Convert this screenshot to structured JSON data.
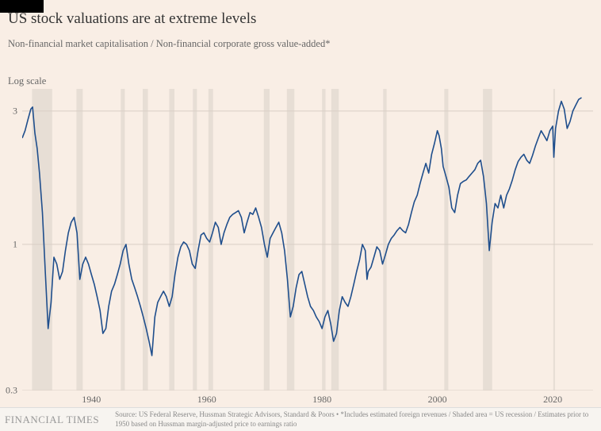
{
  "title": "US stock valuations are at extreme levels",
  "subtitle": "Non-financial market capitalisation / Non-financial corporate gross value-added*",
  "yaxis_label": "Log scale",
  "footer_brand": "FINANCIAL TIMES",
  "source_line1": "Source: US Federal Reserve, Hussman Strategic Advisors, Standard & Poors • *Includes estimated foreign revenues / Shaded area = US recession / Estimates prior to",
  "source_line2": "1950 based on Hussman margin-adjusted price to earnings ratio",
  "chart": {
    "type": "line",
    "scale": "log",
    "xlim": [
      1928,
      2027
    ],
    "ylim": [
      0.3,
      3.6
    ],
    "xticks": [
      1940,
      1960,
      1980,
      2000,
      2020
    ],
    "yticks": [
      0.3,
      1,
      3
    ],
    "line_color": "#1f4e8c",
    "line_width": 1.6,
    "grid_color": "#d9cfc5",
    "recession_color": "#d9d2c8",
    "recession_opacity": 0.55,
    "background_color": "#f9eee5",
    "tick_fontsize": 12,
    "tick_color": "#666666",
    "recessions": [
      [
        1929.7,
        1933.2
      ],
      [
        1937.4,
        1938.5
      ],
      [
        1945.1,
        1945.8
      ],
      [
        1948.9,
        1949.8
      ],
      [
        1953.5,
        1954.4
      ],
      [
        1957.6,
        1958.3
      ],
      [
        1960.3,
        1961.1
      ],
      [
        1969.9,
        1970.9
      ],
      [
        1973.9,
        1975.2
      ],
      [
        1980.0,
        1980.6
      ],
      [
        1981.6,
        1982.9
      ],
      [
        1990.6,
        1991.2
      ],
      [
        2001.2,
        2001.9
      ],
      [
        2007.9,
        2009.5
      ],
      [
        2020.1,
        2020.4
      ]
    ],
    "series": [
      [
        1928.0,
        2.4
      ],
      [
        1928.5,
        2.55
      ],
      [
        1929.0,
        2.8
      ],
      [
        1929.5,
        3.05
      ],
      [
        1929.8,
        3.1
      ],
      [
        1930.2,
        2.5
      ],
      [
        1930.6,
        2.2
      ],
      [
        1931.0,
        1.8
      ],
      [
        1931.5,
        1.3
      ],
      [
        1932.0,
        0.8
      ],
      [
        1932.5,
        0.5
      ],
      [
        1933.0,
        0.62
      ],
      [
        1933.5,
        0.9
      ],
      [
        1934.0,
        0.85
      ],
      [
        1934.5,
        0.75
      ],
      [
        1935.0,
        0.8
      ],
      [
        1935.5,
        0.95
      ],
      [
        1936.0,
        1.1
      ],
      [
        1936.5,
        1.2
      ],
      [
        1937.0,
        1.25
      ],
      [
        1937.5,
        1.1
      ],
      [
        1938.0,
        0.75
      ],
      [
        1938.5,
        0.85
      ],
      [
        1939.0,
        0.9
      ],
      [
        1939.5,
        0.85
      ],
      [
        1940.0,
        0.78
      ],
      [
        1940.5,
        0.72
      ],
      [
        1941.0,
        0.65
      ],
      [
        1941.5,
        0.58
      ],
      [
        1942.0,
        0.48
      ],
      [
        1942.5,
        0.5
      ],
      [
        1943.0,
        0.6
      ],
      [
        1943.5,
        0.68
      ],
      [
        1944.0,
        0.72
      ],
      [
        1944.5,
        0.78
      ],
      [
        1945.0,
        0.85
      ],
      [
        1945.5,
        0.95
      ],
      [
        1946.0,
        1.0
      ],
      [
        1946.5,
        0.85
      ],
      [
        1947.0,
        0.75
      ],
      [
        1947.5,
        0.7
      ],
      [
        1948.0,
        0.65
      ],
      [
        1948.5,
        0.6
      ],
      [
        1949.0,
        0.55
      ],
      [
        1949.5,
        0.5
      ],
      [
        1950.0,
        0.45
      ],
      [
        1950.5,
        0.4
      ],
      [
        1951.0,
        0.55
      ],
      [
        1951.5,
        0.62
      ],
      [
        1952.0,
        0.65
      ],
      [
        1952.5,
        0.68
      ],
      [
        1953.0,
        0.65
      ],
      [
        1953.5,
        0.6
      ],
      [
        1954.0,
        0.65
      ],
      [
        1954.5,
        0.78
      ],
      [
        1955.0,
        0.9
      ],
      [
        1955.5,
        0.98
      ],
      [
        1956.0,
        1.02
      ],
      [
        1956.5,
        1.0
      ],
      [
        1957.0,
        0.95
      ],
      [
        1957.5,
        0.85
      ],
      [
        1958.0,
        0.82
      ],
      [
        1958.5,
        0.95
      ],
      [
        1959.0,
        1.08
      ],
      [
        1959.5,
        1.1
      ],
      [
        1960.0,
        1.05
      ],
      [
        1960.5,
        1.02
      ],
      [
        1961.0,
        1.1
      ],
      [
        1961.5,
        1.2
      ],
      [
        1962.0,
        1.15
      ],
      [
        1962.5,
        1.0
      ],
      [
        1963.0,
        1.1
      ],
      [
        1963.5,
        1.18
      ],
      [
        1964.0,
        1.25
      ],
      [
        1964.5,
        1.28
      ],
      [
        1965.0,
        1.3
      ],
      [
        1965.5,
        1.32
      ],
      [
        1966.0,
        1.25
      ],
      [
        1966.5,
        1.1
      ],
      [
        1967.0,
        1.2
      ],
      [
        1967.5,
        1.3
      ],
      [
        1968.0,
        1.28
      ],
      [
        1968.5,
        1.35
      ],
      [
        1969.0,
        1.25
      ],
      [
        1969.5,
        1.15
      ],
      [
        1970.0,
        1.0
      ],
      [
        1970.5,
        0.9
      ],
      [
        1971.0,
        1.05
      ],
      [
        1971.5,
        1.1
      ],
      [
        1972.0,
        1.15
      ],
      [
        1972.5,
        1.2
      ],
      [
        1973.0,
        1.1
      ],
      [
        1973.5,
        0.95
      ],
      [
        1974.0,
        0.75
      ],
      [
        1974.5,
        0.55
      ],
      [
        1975.0,
        0.6
      ],
      [
        1975.5,
        0.7
      ],
      [
        1976.0,
        0.78
      ],
      [
        1976.5,
        0.8
      ],
      [
        1977.0,
        0.72
      ],
      [
        1977.5,
        0.65
      ],
      [
        1978.0,
        0.6
      ],
      [
        1978.5,
        0.58
      ],
      [
        1979.0,
        0.55
      ],
      [
        1979.5,
        0.53
      ],
      [
        1980.0,
        0.5
      ],
      [
        1980.5,
        0.55
      ],
      [
        1981.0,
        0.58
      ],
      [
        1981.5,
        0.52
      ],
      [
        1982.0,
        0.45
      ],
      [
        1982.5,
        0.48
      ],
      [
        1983.0,
        0.58
      ],
      [
        1983.5,
        0.65
      ],
      [
        1984.0,
        0.62
      ],
      [
        1984.5,
        0.6
      ],
      [
        1985.0,
        0.65
      ],
      [
        1985.5,
        0.72
      ],
      [
        1986.0,
        0.8
      ],
      [
        1986.5,
        0.88
      ],
      [
        1987.0,
        1.0
      ],
      [
        1987.5,
        0.95
      ],
      [
        1987.8,
        0.75
      ],
      [
        1988.0,
        0.8
      ],
      [
        1988.5,
        0.83
      ],
      [
        1989.0,
        0.9
      ],
      [
        1989.5,
        0.98
      ],
      [
        1990.0,
        0.95
      ],
      [
        1990.5,
        0.85
      ],
      [
        1991.0,
        0.92
      ],
      [
        1991.5,
        1.0
      ],
      [
        1992.0,
        1.05
      ],
      [
        1992.5,
        1.08
      ],
      [
        1993.0,
        1.12
      ],
      [
        1993.5,
        1.15
      ],
      [
        1994.0,
        1.12
      ],
      [
        1994.5,
        1.1
      ],
      [
        1995.0,
        1.18
      ],
      [
        1995.5,
        1.3
      ],
      [
        1996.0,
        1.42
      ],
      [
        1996.5,
        1.5
      ],
      [
        1997.0,
        1.65
      ],
      [
        1997.5,
        1.8
      ],
      [
        1998.0,
        1.95
      ],
      [
        1998.5,
        1.8
      ],
      [
        1999.0,
        2.1
      ],
      [
        1999.5,
        2.3
      ],
      [
        2000.0,
        2.55
      ],
      [
        2000.3,
        2.45
      ],
      [
        2000.7,
        2.2
      ],
      [
        2001.0,
        1.9
      ],
      [
        2001.5,
        1.75
      ],
      [
        2002.0,
        1.6
      ],
      [
        2002.5,
        1.35
      ],
      [
        2003.0,
        1.3
      ],
      [
        2003.5,
        1.5
      ],
      [
        2004.0,
        1.65
      ],
      [
        2004.5,
        1.68
      ],
      [
        2005.0,
        1.7
      ],
      [
        2005.5,
        1.75
      ],
      [
        2006.0,
        1.8
      ],
      [
        2006.5,
        1.85
      ],
      [
        2007.0,
        1.95
      ],
      [
        2007.5,
        2.0
      ],
      [
        2008.0,
        1.75
      ],
      [
        2008.5,
        1.4
      ],
      [
        2009.0,
        0.95
      ],
      [
        2009.5,
        1.2
      ],
      [
        2010.0,
        1.4
      ],
      [
        2010.5,
        1.35
      ],
      [
        2011.0,
        1.5
      ],
      [
        2011.5,
        1.35
      ],
      [
        2012.0,
        1.5
      ],
      [
        2012.5,
        1.58
      ],
      [
        2013.0,
        1.7
      ],
      [
        2013.5,
        1.85
      ],
      [
        2014.0,
        1.98
      ],
      [
        2014.5,
        2.05
      ],
      [
        2015.0,
        2.1
      ],
      [
        2015.5,
        2.0
      ],
      [
        2016.0,
        1.95
      ],
      [
        2016.5,
        2.08
      ],
      [
        2017.0,
        2.25
      ],
      [
        2017.5,
        2.4
      ],
      [
        2018.0,
        2.55
      ],
      [
        2018.5,
        2.45
      ],
      [
        2019.0,
        2.35
      ],
      [
        2019.5,
        2.55
      ],
      [
        2020.0,
        2.65
      ],
      [
        2020.2,
        2.05
      ],
      [
        2020.5,
        2.6
      ],
      [
        2021.0,
        3.0
      ],
      [
        2021.5,
        3.25
      ],
      [
        2022.0,
        3.05
      ],
      [
        2022.5,
        2.6
      ],
      [
        2023.0,
        2.75
      ],
      [
        2023.5,
        3.0
      ],
      [
        2024.0,
        3.15
      ],
      [
        2024.5,
        3.3
      ],
      [
        2025.0,
        3.35
      ]
    ]
  }
}
